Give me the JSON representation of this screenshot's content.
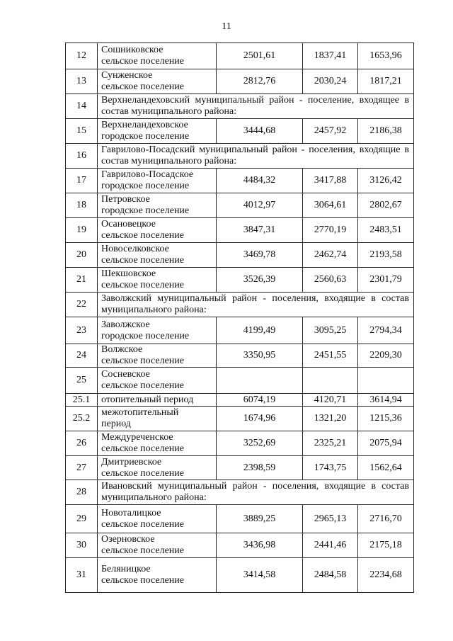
{
  "page_number": "11",
  "rows": [
    {
      "no": "12",
      "name": [
        "Сошниковское",
        "сельское поселение"
      ],
      "values": [
        "2501,61",
        "1837,41",
        "1653,96"
      ]
    },
    {
      "no": "13",
      "name": [
        "Сунженское",
        "сельское поселение"
      ],
      "values": [
        "2812,76",
        "2030,24",
        "1817,21"
      ]
    },
    {
      "no": "14",
      "header": "Верхнеландеховский муниципальный район - поселение, входящее в состав муниципального района:"
    },
    {
      "no": "15",
      "name": [
        "Верхнеландеховское",
        "городское поселение"
      ],
      "values": [
        "3444,68",
        "2457,92",
        "2186,38"
      ]
    },
    {
      "no": "16",
      "header": "Гаврилово-Посадский муниципальный район - поселения, входящие в состав муниципального района:"
    },
    {
      "no": "17",
      "name": [
        "Гаврилово-Посадское",
        "городское поселение"
      ],
      "values": [
        "4484,32",
        "3417,88",
        "3126,42"
      ]
    },
    {
      "no": "18",
      "name": [
        "Петровское",
        "городское поселение"
      ],
      "values": [
        "4012,97",
        "3064,61",
        "2802,67"
      ]
    },
    {
      "no": "19",
      "name": [
        "Осановецкое",
        "сельское поселение"
      ],
      "values": [
        "3847,31",
        "2770,19",
        "2483,51"
      ]
    },
    {
      "no": "20",
      "name": [
        "Новоселковское",
        "сельское поселение"
      ],
      "values": [
        "3469,78",
        "2462,74",
        "2193,58"
      ]
    },
    {
      "no": "21",
      "name": [
        "Шекшовское",
        "сельское поселение"
      ],
      "values": [
        "3526,39",
        "2560,63",
        "2301,79"
      ]
    },
    {
      "no": "22",
      "header": "Заволжский муниципальный район - поселения, входящие в состав муниципального района:"
    },
    {
      "no": "23",
      "name": [
        "Заволжское",
        "городское поселение"
      ],
      "values": [
        "4199,49",
        "3095,25",
        "2794,34"
      ]
    },
    {
      "no": "24",
      "name": [
        "Волжское",
        "сельское поселение"
      ],
      "values": [
        "3350,95",
        "2451,55",
        "2209,30"
      ]
    },
    {
      "no": "25",
      "name": [
        "Сосневское",
        "сельское поселение"
      ],
      "values": [
        "",
        "",
        ""
      ]
    },
    {
      "no": "25.1",
      "name": [
        "отопительный период"
      ],
      "values": [
        "6074,19",
        "4120,71",
        "3614,94"
      ]
    },
    {
      "no": "25.2",
      "name": [
        "межотопительный",
        "период"
      ],
      "values": [
        "1674,96",
        "1321,20",
        "1215,36"
      ]
    },
    {
      "no": "26",
      "name": [
        "Междуреченское",
        "сельское поселение"
      ],
      "values": [
        "3252,69",
        "2325,21",
        "2075,94"
      ]
    },
    {
      "no": "27",
      "name": [
        "Дмитриевское",
        "сельское поселение"
      ],
      "values": [
        "2398,59",
        "1743,75",
        "1562,64"
      ]
    },
    {
      "no": "28",
      "header": "Ивановский муниципальный район - поселения, входящие в состав муниципального района:"
    },
    {
      "no": "29",
      "name": [
        "Новоталицкое",
        "сельское поселение"
      ],
      "values": [
        "3889,25",
        "2965,13",
        "2716,70"
      ]
    },
    {
      "no": "30",
      "name": [
        "Озерновское",
        "сельское поселение"
      ],
      "values": [
        "3436,98",
        "2441,46",
        "2175,18"
      ]
    },
    {
      "no": "31",
      "name": [
        "Беляницкое",
        "сельское поселение"
      ],
      "values": [
        "3414,58",
        "2484,58",
        "2234,68"
      ]
    }
  ]
}
